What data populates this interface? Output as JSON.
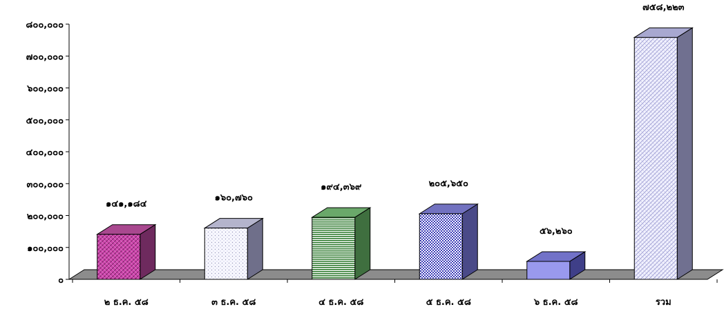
{
  "chart_data": {
    "type": "bar",
    "categories": [
      "๒ ธ.ค. ๕๘",
      "๓ ธ.ค. ๕๘",
      "๔ ธ.ค. ๕๘",
      "๕ ธ.ค. ๕๘",
      "๖ ธ.ค. ๕๘",
      "รวม"
    ],
    "values": [
      141184,
      160760,
      194369,
      205650,
      56260,
      758223
    ],
    "data_labels": [
      "๑๔๑,๑๘๔",
      "๑๖๐,๗๖๐",
      "๑๙๔,๓๖๙",
      "๒๐๕,๖๕๐",
      "๕๖,๒๖๐",
      "๗๕๘,๒๒๓"
    ],
    "yticks": [
      0,
      100000,
      200000,
      300000,
      400000,
      500000,
      600000,
      700000,
      800000
    ],
    "ytick_labels": [
      "๐",
      "๑๐๐,๐๐๐",
      "๒๐๐,๐๐๐",
      "๓๐๐,๐๐๐",
      "๔๐๐,๐๐๐",
      "๕๐๐,๐๐๐",
      "๖๐๐,๐๐๐",
      "๗๐๐,๐๐๐",
      "๘๐๐,๐๐๐"
    ],
    "ylim": [
      0,
      800000
    ],
    "title": "",
    "xlabel": "",
    "ylabel": "",
    "grid": false,
    "legend": "none",
    "style": "3d-column",
    "colors": {
      "fronts": [
        "#cc44aa",
        "#f0f0f8",
        "#88c488",
        "#9999dd",
        "#9999ee",
        "#d8d8f4"
      ],
      "sides": [
        "#6e2a5e",
        "#6f6f8a",
        "#3f6f3f",
        "#4a4a88",
        "#3f3f88",
        "#707090"
      ],
      "tops": [
        "#a9488f",
        "#b4b4cc",
        "#6aa86a",
        "#7272c0",
        "#7272c8",
        "#a8a8d0"
      ],
      "floor": "#8c8c8c"
    }
  }
}
